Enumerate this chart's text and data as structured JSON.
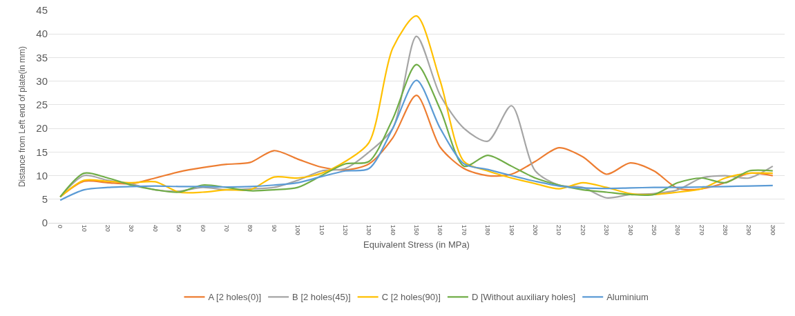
{
  "chart_data": {
    "type": "line",
    "xlabel": "Equivalent Stress (in MPa)",
    "ylabel": "Distance from Left end of plate(in mm)",
    "categories": [
      "0",
      "10",
      "20",
      "30",
      "40",
      "50",
      "60",
      "70",
      "80",
      "90",
      "100",
      "110",
      "120",
      "130",
      "140",
      "150",
      "160",
      "170",
      "180",
      "190",
      "200",
      "210",
      "220",
      "230",
      "240",
      "250",
      "260",
      "270",
      "280",
      "290",
      "300"
    ],
    "series": [
      {
        "name": "A [2 holes(0)]",
        "color": "#ed7d31",
        "values": [
          5.5,
          8.8,
          8.5,
          8.3,
          9.5,
          10.8,
          11.7,
          12.4,
          12.8,
          15.3,
          13.5,
          11.8,
          11.2,
          12.5,
          18,
          27,
          16,
          11.5,
          10,
          10.3,
          13,
          15.9,
          14,
          10.3,
          12.7,
          11,
          7.3,
          7.2,
          8.5,
          10.5,
          10
        ]
      },
      {
        "name": "B [2 holes(45)]",
        "color": "#a5a5a5",
        "values": [
          5.5,
          10,
          9,
          8.2,
          7,
          6.7,
          7.5,
          7,
          7.2,
          7.5,
          9,
          11,
          11.5,
          15,
          20,
          39.5,
          27,
          20,
          17.3,
          24.8,
          11,
          8,
          7.5,
          5.3,
          6,
          6.2,
          7,
          9.5,
          10,
          9.5,
          12
        ]
      },
      {
        "name": "C [2 holes(90)]",
        "color": "#ffc000",
        "values": [
          5.5,
          9,
          8.8,
          8.5,
          8.7,
          6.5,
          6.5,
          7,
          7,
          9.7,
          9.5,
          10.5,
          13,
          17,
          37,
          43.8,
          30,
          13,
          11,
          9.5,
          8.3,
          7.2,
          8.5,
          7.5,
          6.2,
          6,
          6.5,
          7.2,
          9.5,
          10.5,
          10.5
        ]
      },
      {
        "name": "D [Without auxiliary holes]",
        "color": "#70ad47",
        "values": [
          5.5,
          10.5,
          9.5,
          8,
          7,
          6.5,
          8,
          7.5,
          6.8,
          7,
          7.5,
          10,
          12.5,
          13,
          22,
          33.5,
          24,
          12,
          14.3,
          12,
          9.5,
          8,
          7,
          6.5,
          6,
          6,
          8.5,
          9.5,
          8.5,
          11,
          11
        ]
      },
      {
        "name": "Aluminium",
        "color": "#5b9bd5",
        "values": [
          4.8,
          7,
          7.5,
          7.7,
          7.8,
          7.7,
          7.7,
          7.6,
          7.7,
          8,
          8.5,
          9.8,
          11,
          11.5,
          20,
          30.2,
          20,
          12.5,
          11.3,
          10,
          8.8,
          7.8,
          7.4,
          7.3,
          7.4,
          7.5,
          7.5,
          7.6,
          7.7,
          7.8,
          7.9
        ]
      }
    ],
    "ylim": [
      0,
      45
    ],
    "yticks": [
      0,
      5,
      10,
      15,
      20,
      25,
      30,
      35,
      40,
      45
    ],
    "grid": "y",
    "legend": "bottom",
    "marker": "none",
    "line_style": "solid"
  }
}
